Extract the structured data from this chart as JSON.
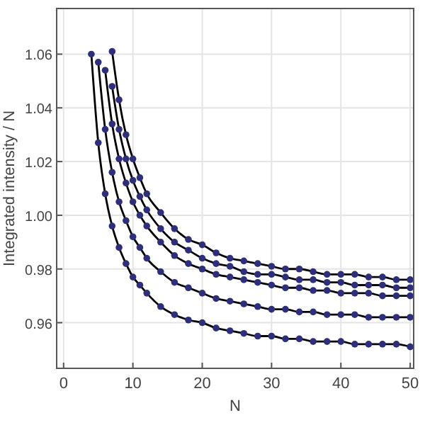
{
  "chart_data": {
    "type": "scatter",
    "xlabel": "N",
    "ylabel": "Integrated intensity / N",
    "xlim": [
      -1,
      50.5
    ],
    "ylim": [
      0.943,
      1.077
    ],
    "xticks": [
      0,
      10,
      20,
      30,
      40,
      50
    ],
    "yticks": [
      {
        "value": 0.96,
        "label": "0.96"
      },
      {
        "value": 0.98,
        "label": "0.98"
      },
      {
        "value": 1.0,
        "label": "1.00"
      },
      {
        "value": 1.02,
        "label": "1.02"
      },
      {
        "value": 1.04,
        "label": "1.04"
      },
      {
        "value": 1.06,
        "label": "1.06"
      }
    ],
    "grid": true,
    "marker": "circle",
    "series": [
      {
        "color": "#2e2e7a",
        "x": [
          4,
          5,
          6,
          7,
          8,
          9,
          10,
          11,
          12,
          14,
          16,
          18,
          20,
          22,
          24,
          26,
          28,
          30,
          32,
          34,
          36,
          38,
          40,
          42,
          44,
          46,
          48,
          50
        ],
        "values": [
          1.06,
          1.027,
          1.008,
          0.996,
          0.988,
          0.982,
          0.977,
          0.974,
          0.971,
          0.966,
          0.963,
          0.961,
          0.96,
          0.958,
          0.957,
          0.956,
          0.955,
          0.955,
          0.954,
          0.954,
          0.953,
          0.953,
          0.953,
          0.952,
          0.952,
          0.952,
          0.952,
          0.951
        ]
      },
      {
        "color": "#2e2e7a",
        "x": [
          5,
          6,
          7,
          8,
          9,
          10,
          11,
          12,
          14,
          16,
          18,
          20,
          22,
          24,
          26,
          28,
          30,
          32,
          34,
          36,
          38,
          40,
          42,
          44,
          46,
          48,
          50
        ],
        "values": [
          1.057,
          1.032,
          1.016,
          1.005,
          0.998,
          0.992,
          0.988,
          0.984,
          0.979,
          0.975,
          0.973,
          0.971,
          0.969,
          0.968,
          0.967,
          0.966,
          0.965,
          0.965,
          0.964,
          0.964,
          0.963,
          0.963,
          0.963,
          0.962,
          0.962,
          0.962,
          0.962
        ]
      },
      {
        "color": "#2e2e7a",
        "x": [
          6,
          7,
          8,
          9,
          10,
          11,
          12,
          14,
          16,
          18,
          20,
          22,
          24,
          26,
          28,
          30,
          32,
          34,
          36,
          38,
          40,
          42,
          44,
          46,
          48,
          50
        ],
        "values": [
          1.054,
          1.034,
          1.021,
          1.012,
          1.005,
          1.0,
          0.996,
          0.99,
          0.985,
          0.982,
          0.98,
          0.978,
          0.977,
          0.976,
          0.975,
          0.974,
          0.973,
          0.973,
          0.972,
          0.972,
          0.971,
          0.971,
          0.971,
          0.97,
          0.97,
          0.97
        ]
      },
      {
        "color": "#2e2e7a",
        "x": [
          7,
          8,
          9,
          10,
          11,
          12,
          14,
          16,
          18,
          20,
          22,
          24,
          26,
          28,
          30,
          32,
          34,
          36,
          38,
          40,
          42,
          44,
          46,
          48,
          50
        ],
        "values": [
          1.048,
          1.032,
          1.021,
          1.013,
          1.007,
          1.002,
          0.995,
          0.99,
          0.987,
          0.984,
          0.982,
          0.981,
          0.979,
          0.978,
          0.978,
          0.977,
          0.976,
          0.976,
          0.975,
          0.975,
          0.974,
          0.974,
          0.974,
          0.973,
          0.973
        ]
      },
      {
        "color": "#2e2e7a",
        "x": [
          7,
          8,
          9,
          10,
          11,
          12,
          14,
          16,
          18,
          20,
          22,
          24,
          26,
          28,
          30,
          32,
          34,
          36,
          38,
          40,
          42,
          44,
          46,
          48,
          50
        ],
        "values": [
          1.061,
          1.043,
          1.03,
          1.021,
          1.014,
          1.008,
          1.001,
          0.995,
          0.991,
          0.989,
          0.986,
          0.984,
          0.983,
          0.982,
          0.981,
          0.98,
          0.98,
          0.979,
          0.978,
          0.978,
          0.978,
          0.977,
          0.977,
          0.976,
          0.976
        ]
      },
      {
        "type": "line",
        "marker": "none",
        "color": "#000000",
        "x": [
          4,
          5,
          6,
          7,
          8,
          9,
          10,
          11,
          12,
          14,
          16,
          18,
          20,
          22,
          24,
          26,
          28,
          30,
          32,
          34,
          36,
          38,
          40,
          42,
          44,
          46,
          48,
          50
        ],
        "values": [
          1.06,
          1.027,
          1.008,
          0.996,
          0.988,
          0.982,
          0.977,
          0.974,
          0.971,
          0.966,
          0.963,
          0.961,
          0.96,
          0.958,
          0.957,
          0.956,
          0.955,
          0.955,
          0.954,
          0.954,
          0.953,
          0.953,
          0.953,
          0.952,
          0.952,
          0.952,
          0.952,
          0.951
        ]
      },
      {
        "type": "line",
        "marker": "none",
        "color": "#000000",
        "x": [
          5,
          6,
          7,
          8,
          9,
          10,
          11,
          12,
          14,
          16,
          18,
          20,
          22,
          24,
          26,
          28,
          30,
          32,
          34,
          36,
          38,
          40,
          42,
          44,
          46,
          48,
          50
        ],
        "values": [
          1.057,
          1.032,
          1.016,
          1.005,
          0.998,
          0.992,
          0.988,
          0.984,
          0.979,
          0.975,
          0.973,
          0.971,
          0.969,
          0.968,
          0.967,
          0.966,
          0.965,
          0.965,
          0.964,
          0.964,
          0.963,
          0.963,
          0.963,
          0.962,
          0.962,
          0.962,
          0.962
        ]
      },
      {
        "type": "line",
        "marker": "none",
        "color": "#000000",
        "x": [
          6,
          7,
          8,
          9,
          10,
          11,
          12,
          14,
          16,
          18,
          20,
          22,
          24,
          26,
          28,
          30,
          32,
          34,
          36,
          38,
          40,
          42,
          44,
          46,
          48,
          50
        ],
        "values": [
          1.054,
          1.034,
          1.021,
          1.012,
          1.005,
          1.0,
          0.996,
          0.99,
          0.985,
          0.982,
          0.98,
          0.978,
          0.977,
          0.976,
          0.975,
          0.974,
          0.973,
          0.973,
          0.972,
          0.972,
          0.971,
          0.971,
          0.971,
          0.97,
          0.97,
          0.97
        ]
      },
      {
        "type": "line",
        "marker": "none",
        "color": "#000000",
        "x": [
          7,
          8,
          9,
          10,
          11,
          12,
          14,
          16,
          18,
          20,
          22,
          24,
          26,
          28,
          30,
          32,
          34,
          36,
          38,
          40,
          42,
          44,
          46,
          48,
          50
        ],
        "values": [
          1.048,
          1.032,
          1.021,
          1.013,
          1.007,
          1.002,
          0.995,
          0.99,
          0.987,
          0.984,
          0.982,
          0.981,
          0.979,
          0.978,
          0.978,
          0.977,
          0.976,
          0.976,
          0.975,
          0.975,
          0.974,
          0.974,
          0.974,
          0.973,
          0.973
        ]
      },
      {
        "type": "line",
        "marker": "none",
        "color": "#000000",
        "x": [
          7,
          8,
          9,
          10,
          11,
          12,
          14,
          16,
          18,
          20,
          22,
          24,
          26,
          28,
          30,
          32,
          34,
          36,
          38,
          40,
          42,
          44,
          46,
          48,
          50
        ],
        "values": [
          1.061,
          1.043,
          1.03,
          1.021,
          1.014,
          1.008,
          1.001,
          0.995,
          0.991,
          0.989,
          0.986,
          0.984,
          0.983,
          0.982,
          0.981,
          0.98,
          0.98,
          0.979,
          0.978,
          0.978,
          0.978,
          0.977,
          0.977,
          0.976,
          0.976
        ]
      }
    ]
  }
}
